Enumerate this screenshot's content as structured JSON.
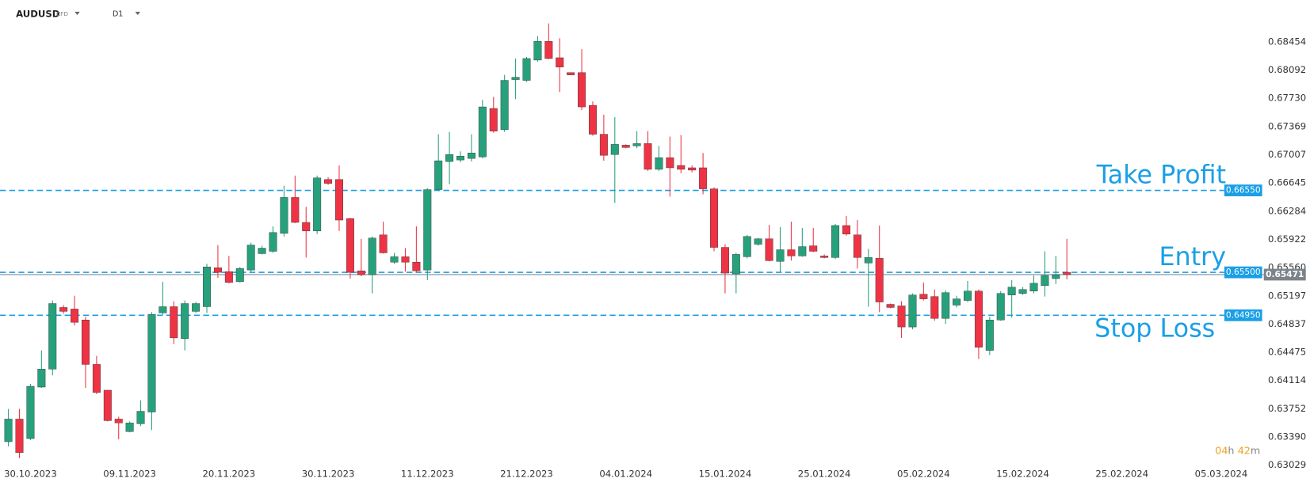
{
  "chart_data": {
    "type": "candlestick",
    "symbol": "AUDUSD",
    "instrument": "CFD",
    "timeframe": "D1",
    "categories": [
      null,
      null,
      "30.10.2023",
      null,
      null,
      null,
      null,
      null,
      null,
      null,
      null,
      "09.11.2023",
      null,
      null,
      null,
      null,
      null,
      null,
      null,
      null,
      "20.11.2023",
      null,
      null,
      null,
      null,
      null,
      null,
      null,
      null,
      "30.11.2023",
      null,
      null,
      null,
      null,
      null,
      null,
      null,
      null,
      "11.12.2023",
      null,
      null,
      null,
      null,
      null,
      null,
      null,
      null,
      "21.12.2023",
      null,
      null,
      null,
      null,
      null,
      null,
      null,
      null,
      "04.01.2024",
      null,
      null,
      null,
      null,
      null,
      null,
      null,
      null,
      "15.01.2024",
      null,
      null,
      null,
      null,
      null,
      null,
      null,
      null,
      "25.01.2024",
      null,
      null,
      null,
      null,
      null,
      null,
      null,
      null,
      "05.02.2024",
      null,
      null,
      null,
      null,
      null,
      null,
      null,
      null,
      "15.02.2024",
      null,
      null,
      null,
      null,
      null,
      null,
      null,
      null,
      "25.02.2024",
      null,
      null,
      null,
      null,
      null,
      null,
      null,
      null,
      "05.03.2024",
      null,
      null,
      null
    ],
    "open": [
      0.6333,
      0.6362,
      0.6337,
      0.6403,
      0.6426,
      0.6505,
      0.6503,
      0.6489,
      0.6432,
      0.6399,
      0.6362,
      0.6346,
      0.6356,
      0.6371,
      0.6498,
      0.6506,
      0.6465,
      0.65,
      0.6506,
      0.6556,
      0.6551,
      0.6538,
      0.6553,
      0.6574,
      0.6577,
      0.66,
      0.6646,
      0.6614,
      0.6603,
      0.6669,
      0.6669,
      0.6619,
      0.6552,
      0.6547,
      0.6598,
      0.6563,
      0.657,
      0.6563,
      0.6553,
      0.6656,
      0.6692,
      0.6694,
      0.6696,
      0.6698,
      0.676,
      0.6733,
      0.6797,
      0.6796,
      0.6822,
      0.6846,
      0.6825,
      0.6806,
      0.6806,
      0.6764,
      0.6727,
      0.6701,
      0.6713,
      0.6712,
      0.6715,
      0.6682,
      0.6697,
      0.6687,
      0.6684,
      0.6684,
      0.6657,
      0.6582,
      0.6548,
      0.657,
      0.6586,
      0.6593,
      0.6564,
      0.6579,
      0.6571,
      0.6584,
      0.6571,
      0.6569,
      0.661,
      0.6598,
      0.6562,
      0.6568,
      0.6509,
      0.6507,
      0.648,
      0.6522,
      0.6519,
      0.6491,
      0.6508,
      0.6514,
      0.6526,
      0.645,
      0.6489,
      0.6521,
      0.6523,
      0.6526,
      0.6533,
      0.6542,
      0.655,
      null,
      null,
      null,
      null,
      null,
      null,
      null,
      null,
      null,
      null,
      null,
      null,
      null,
      null,
      null,
      null,
      null
    ],
    "high": [
      0.6375,
      0.6375,
      0.6407,
      0.645,
      0.6514,
      0.6508,
      0.652,
      0.6493,
      0.6443,
      0.6399,
      0.6365,
      0.6359,
      0.6386,
      0.6499,
      0.6538,
      0.6513,
      0.6514,
      0.6512,
      0.6561,
      0.6585,
      0.6571,
      0.6557,
      0.6588,
      0.6584,
      0.6609,
      0.6661,
      0.6674,
      0.6634,
      0.6674,
      0.6672,
      0.6687,
      0.662,
      0.6593,
      0.6596,
      0.6615,
      0.6575,
      0.6581,
      0.6609,
      0.6658,
      0.6727,
      0.673,
      0.6705,
      0.6727,
      0.6771,
      0.6775,
      0.6803,
      0.6824,
      0.6826,
      0.6853,
      0.6869,
      0.685,
      0.6806,
      0.6836,
      0.6769,
      0.6752,
      0.6749,
      0.6714,
      0.6731,
      0.6731,
      0.6712,
      0.6724,
      0.6726,
      0.6687,
      0.6703,
      0.6659,
      0.6586,
      0.6575,
      0.6598,
      0.6594,
      0.6611,
      0.6608,
      0.6615,
      0.6607,
      0.6607,
      0.6573,
      0.6612,
      0.6622,
      0.6617,
      0.658,
      0.661,
      0.651,
      0.6513,
      0.6523,
      0.6537,
      0.6528,
      0.6527,
      0.652,
      0.6539,
      0.6528,
      0.6493,
      0.6526,
      0.654,
      0.6531,
      0.6546,
      0.6577,
      0.6571,
      0.6593,
      null,
      null,
      null,
      null,
      null,
      null,
      null,
      null,
      null,
      null,
      null,
      null,
      null,
      null,
      null,
      null,
      null
    ],
    "low": [
      0.6327,
      0.6312,
      0.6335,
      0.6402,
      0.6418,
      0.6497,
      0.6482,
      0.6402,
      0.6394,
      0.6359,
      0.6336,
      0.6345,
      0.6353,
      0.6348,
      0.6496,
      0.6458,
      0.645,
      0.6498,
      0.6498,
      0.6543,
      0.6536,
      0.6537,
      0.655,
      0.6573,
      0.6575,
      0.6596,
      0.6613,
      0.6569,
      0.6599,
      0.6662,
      0.6603,
      0.6542,
      0.6545,
      0.6523,
      0.6574,
      0.6561,
      0.6551,
      0.655,
      0.654,
      0.6654,
      0.6663,
      0.6691,
      0.6692,
      0.6696,
      0.6729,
      0.673,
      0.6772,
      0.6794,
      0.682,
      0.6823,
      0.6781,
      0.6803,
      0.6758,
      0.6725,
      0.6693,
      0.6639,
      0.6709,
      0.6709,
      0.668,
      0.668,
      0.6647,
      0.6677,
      0.6678,
      0.665,
      0.6577,
      0.6523,
      0.6523,
      0.6568,
      0.6584,
      0.6564,
      0.655,
      0.6565,
      0.657,
      0.6576,
      0.6568,
      0.6567,
      0.6597,
      0.6555,
      0.6506,
      0.6499,
      0.6504,
      0.6466,
      0.6477,
      0.6514,
      0.6488,
      0.6484,
      0.6505,
      0.6512,
      0.6439,
      0.6444,
      0.6488,
      0.6492,
      0.6521,
      0.6523,
      0.6519,
      0.6535,
      0.6541,
      null,
      null,
      null,
      null,
      null,
      null,
      null,
      null,
      null,
      null,
      null,
      null,
      null,
      null,
      null,
      null,
      null
    ],
    "close": [
      0.6362,
      0.6319,
      0.6404,
      0.6426,
      0.651,
      0.65,
      0.6486,
      0.6432,
      0.6396,
      0.636,
      0.6357,
      0.6357,
      0.6372,
      0.6496,
      0.6506,
      0.6466,
      0.651,
      0.651,
      0.6557,
      0.655,
      0.6537,
      0.6555,
      0.6585,
      0.6581,
      0.6601,
      0.6646,
      0.6614,
      0.6603,
      0.6671,
      0.6664,
      0.6617,
      0.655,
      0.6547,
      0.6594,
      0.6575,
      0.657,
      0.6563,
      0.6552,
      0.6656,
      0.6693,
      0.6701,
      0.6699,
      0.6703,
      0.6762,
      0.6731,
      0.6796,
      0.68,
      0.6824,
      0.6846,
      0.6824,
      0.6813,
      0.6803,
      0.6762,
      0.6727,
      0.67,
      0.6714,
      0.671,
      0.6715,
      0.6682,
      0.6697,
      0.6684,
      0.6682,
      0.6681,
      0.6657,
      0.6582,
      0.6549,
      0.6573,
      0.6596,
      0.6593,
      0.6565,
      0.6579,
      0.6571,
      0.6583,
      0.6577,
      0.6569,
      0.661,
      0.6599,
      0.6569,
      0.6569,
      0.6512,
      0.6505,
      0.648,
      0.6521,
      0.6516,
      0.6491,
      0.6524,
      0.6516,
      0.6526,
      0.6454,
      0.6489,
      0.6523,
      0.6531,
      0.6528,
      0.6536,
      0.6546,
      0.6547,
      0.65471,
      null,
      null,
      null,
      null,
      null,
      null,
      null,
      null,
      null,
      null,
      null,
      null,
      null,
      null,
      null,
      null,
      null
    ],
    "up_color": "#26a17b",
    "down_color": "#ee3344",
    "ylim": [
      0.6302,
      0.6899
    ],
    "yticks": [
      0.68454,
      0.68092,
      {
        "value": 0.6773,
        "label": "0.67730"
      },
      0.67369,
      0.67007,
      0.66645,
      0.66284,
      0.65922,
      {
        "value": 0.6556,
        "label": "0.65560"
      },
      0.65197,
      0.64837,
      0.64475,
      0.64114,
      0.63752,
      {
        "value": 0.6339,
        "label": "0.63390"
      },
      0.63029
    ],
    "grid": false,
    "levels": [
      {
        "name": "Take Profit",
        "value": 0.6655,
        "label": "0.66550",
        "color": "#1a9fe6"
      },
      {
        "name": "Entry",
        "value": 0.655,
        "label": "0.65500",
        "color": "#1a9fe6"
      },
      {
        "name": "Stop Loss",
        "value": 0.6495,
        "label": "0.64950",
        "color": "#1a9fe6"
      }
    ],
    "countdown": [
      "04",
      "h",
      "42",
      "m"
    ]
  }
}
